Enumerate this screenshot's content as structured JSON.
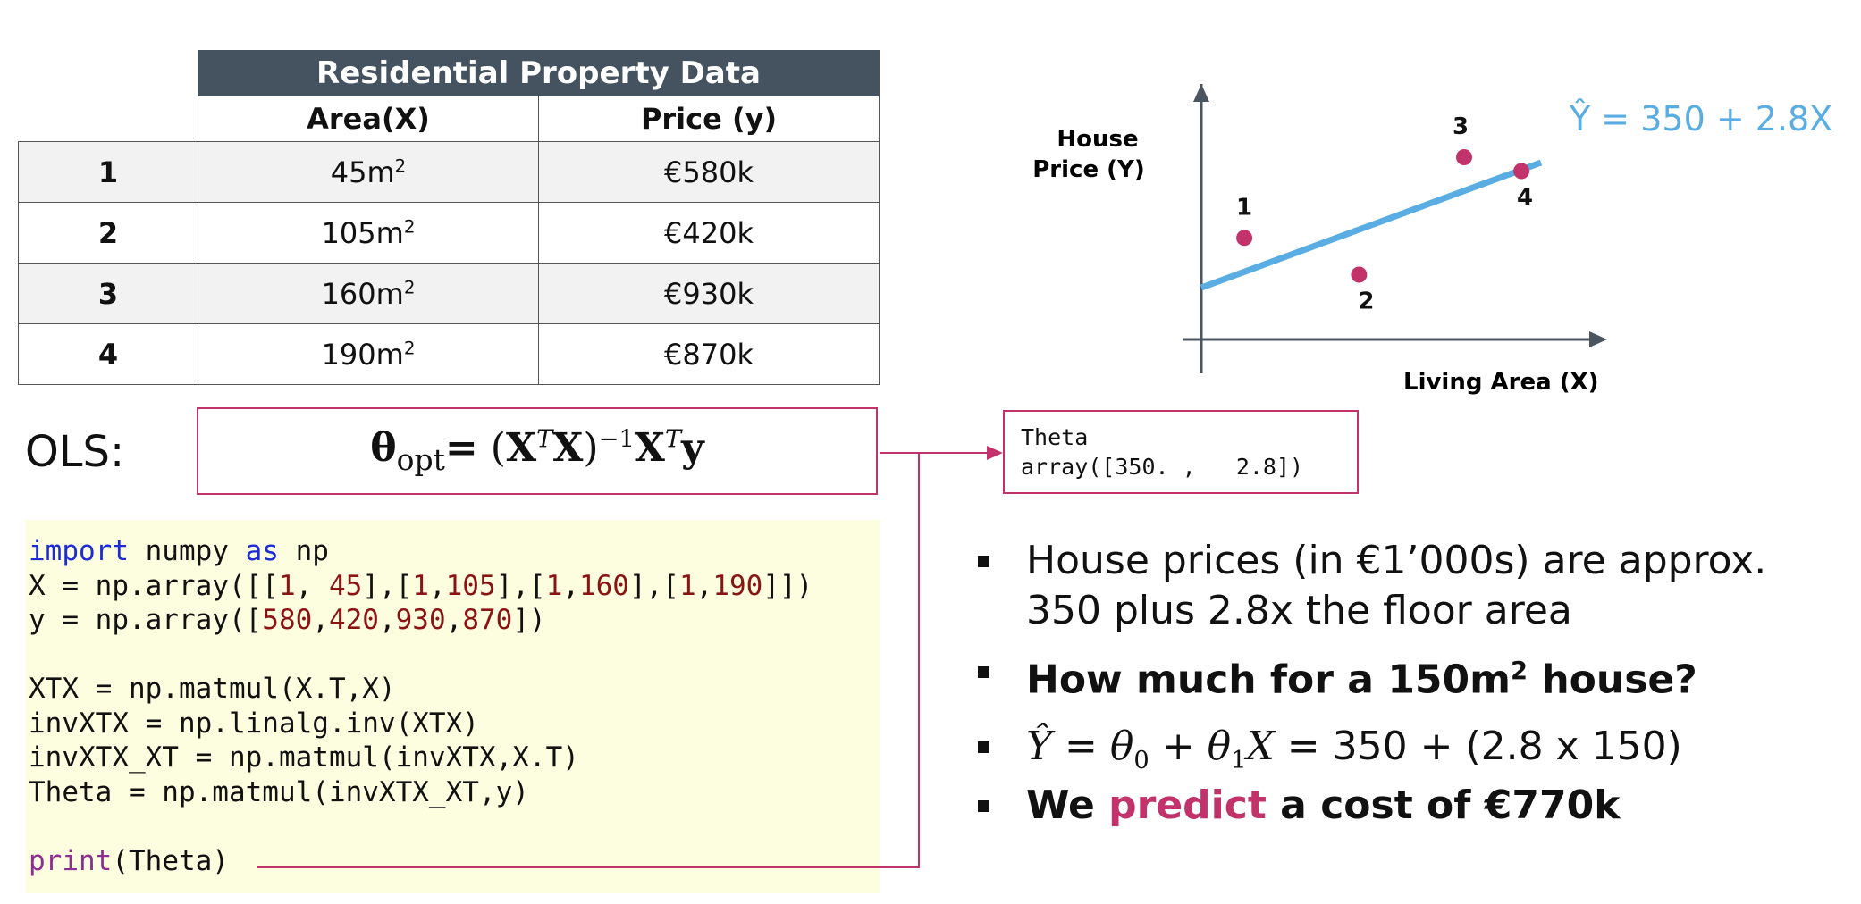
{
  "table": {
    "title": "Residential Property Data",
    "headers": [
      "Area(X)",
      "Price (y)"
    ],
    "area_unit": "m",
    "area_unit_sup": "2",
    "rows": [
      {
        "id": "1",
        "area": "45",
        "price": "€580k"
      },
      {
        "id": "2",
        "area": "105",
        "price": "€420k"
      },
      {
        "id": "3",
        "area": "160",
        "price": "€930k"
      },
      {
        "id": "4",
        "area": "190",
        "price": "€870k"
      }
    ]
  },
  "ols": {
    "label": "OLS:",
    "theta": "θ",
    "theta_sub": "opt",
    "eq": "=",
    "t_sup": "T",
    "inv_sup": "−1",
    "x": "X",
    "y": "y"
  },
  "code": {
    "kw_import": "import",
    "mod": " numpy ",
    "kw_as": "as",
    "alias": " np",
    "l2_a": "X = np.array([[",
    "l2_n1": "1",
    "l2_b": ", ",
    "l2_n2": "45",
    "l2_c": "],[",
    "l2_n3": "1",
    "l2_d": ",",
    "l2_n4": "105",
    "l2_e": "],[",
    "l2_n5": "1",
    "l2_f": ",",
    "l2_n6": "160",
    "l2_g": "],[",
    "l2_n7": "1",
    "l2_h": ",",
    "l2_n8": "190",
    "l2_i": "]])",
    "l3_a": "y = np.array([",
    "l3_n1": "580",
    "l3_n2": "420",
    "l3_n3": "930",
    "l3_n4": "870",
    "l3_b": "])",
    "comma": ",",
    "l5": "XTX = np.matmul(X.T,X)",
    "l6": "invXTX = np.linalg.inv(XTX)",
    "l7": "invXTX_XT = np.matmul(invXTX,X.T)",
    "l8": "Theta = np.matmul(invXTX_XT,y)",
    "print_fn": "print",
    "print_arg": "(Theta)"
  },
  "output": {
    "line1": "Theta",
    "line2": "array([350. ,   2.8])"
  },
  "chart_data": {
    "type": "scatter",
    "ylabel": [
      "House",
      "Price (Y)"
    ],
    "xlabel": "Living Area (X)",
    "equation": "Ŷ = 350 + 2.8X",
    "points": [
      {
        "label": "1",
        "x": 45,
        "y": 580
      },
      {
        "label": "2",
        "x": 105,
        "y": 420
      },
      {
        "label": "3",
        "x": 160,
        "y": 930
      },
      {
        "label": "4",
        "x": 190,
        "y": 870
      }
    ],
    "line": {
      "intercept": 350,
      "slope": 2.8
    },
    "point_color": "#c2336b",
    "line_color": "#5aade3",
    "axis_color": "#4a5560"
  },
  "bullets": {
    "b1_line1": "House prices (in €1’000s) are approx.",
    "b1_line2": "350 plus 2.8x the floor area",
    "b2_a": "How much for a 150m",
    "b2_sup": "2",
    "b2_b": " house?",
    "b3_yhat": "Ŷ",
    "b3_eq": " =  θ",
    "b3_s0": "0",
    "b3_plus": " + θ",
    "b3_s1": "1",
    "b3_x": "X",
    "b3_rhs": "    = 350 + (2.8 x 150)",
    "b4_a": "We ",
    "b4_pink": "predict",
    "b4_b": " a cost of €770k"
  },
  "colors": {
    "accent": "#c2336b",
    "header_bg": "#44535f",
    "code_bg": "#fdfde0"
  }
}
